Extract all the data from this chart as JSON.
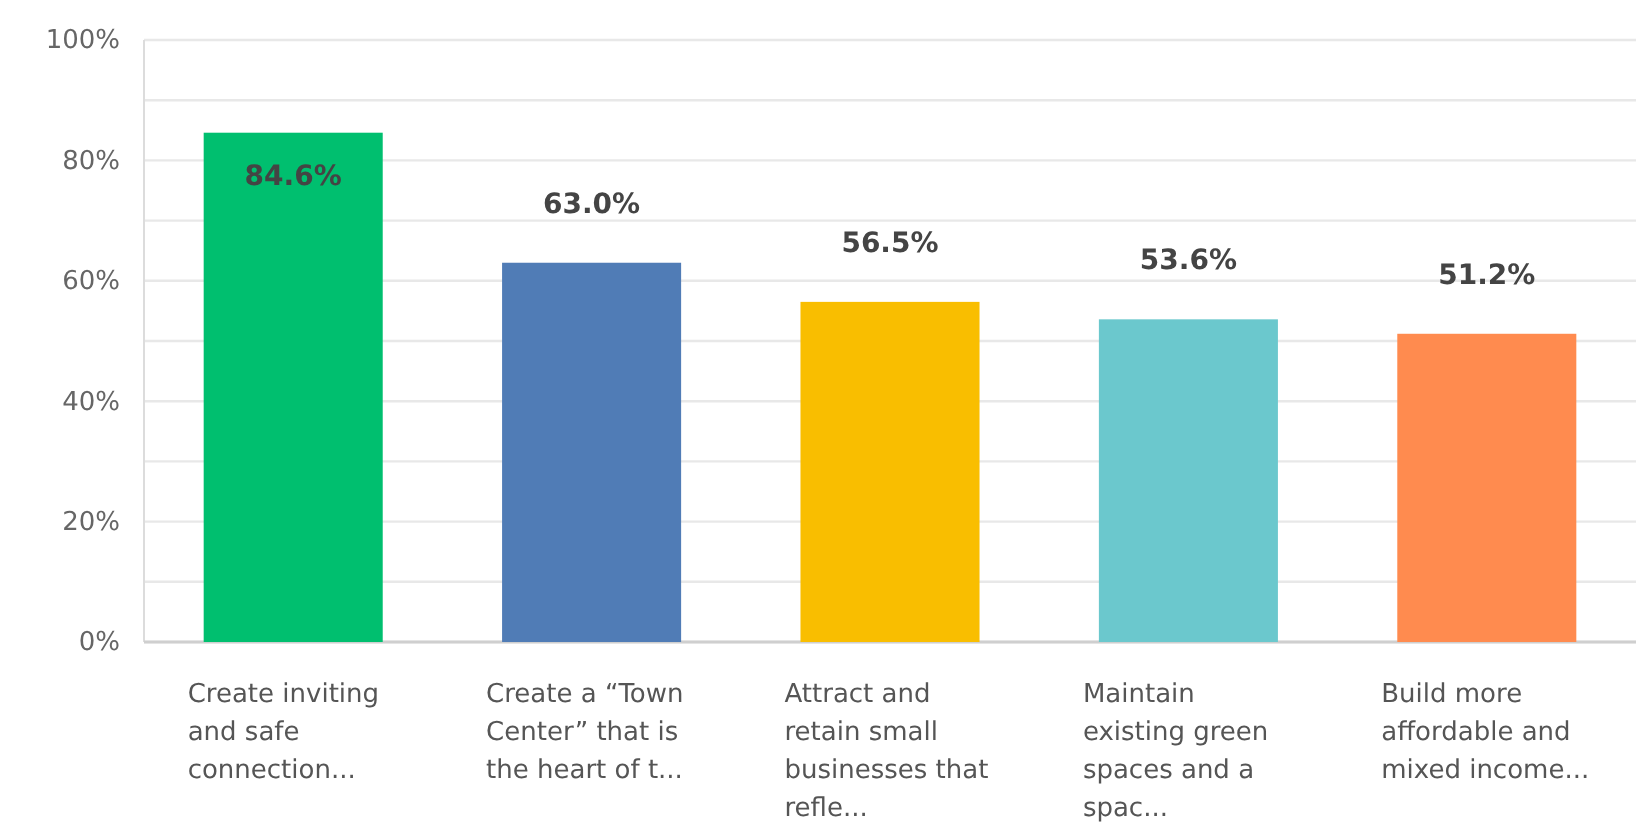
{
  "chart_data": {
    "type": "bar",
    "categories": [
      "Create inviting and safe connection...",
      "Create a “Town Center” that is the heart of t...",
      "Attract and retain small businesses that refle...",
      "Maintain existing green spaces and a spac...",
      "Build more affordable and mixed income..."
    ],
    "values": [
      84.6,
      63.0,
      56.5,
      53.6,
      51.2
    ],
    "value_labels": [
      "84.6%",
      "63.0%",
      "56.5%",
      "53.6%",
      "51.2%"
    ],
    "colors": [
      "#00bf6f",
      "#507cb6",
      "#f9be00",
      "#6bc8cd",
      "#ff8b4f"
    ],
    "ylim": [
      0,
      100
    ],
    "yticks": [
      {
        "value": 0,
        "label": "0%"
      },
      {
        "value": 10,
        "label": null
      },
      {
        "value": 20,
        "label": "20%"
      },
      {
        "value": 30,
        "label": null
      },
      {
        "value": 40,
        "label": "40%"
      },
      {
        "value": 50,
        "label": null
      },
      {
        "value": 60,
        "label": "60%"
      },
      {
        "value": 70,
        "label": null
      },
      {
        "value": 80,
        "label": "80%"
      },
      {
        "value": 90,
        "label": null
      },
      {
        "value": 100,
        "label": "100%"
      }
    ],
    "grid": "y"
  }
}
